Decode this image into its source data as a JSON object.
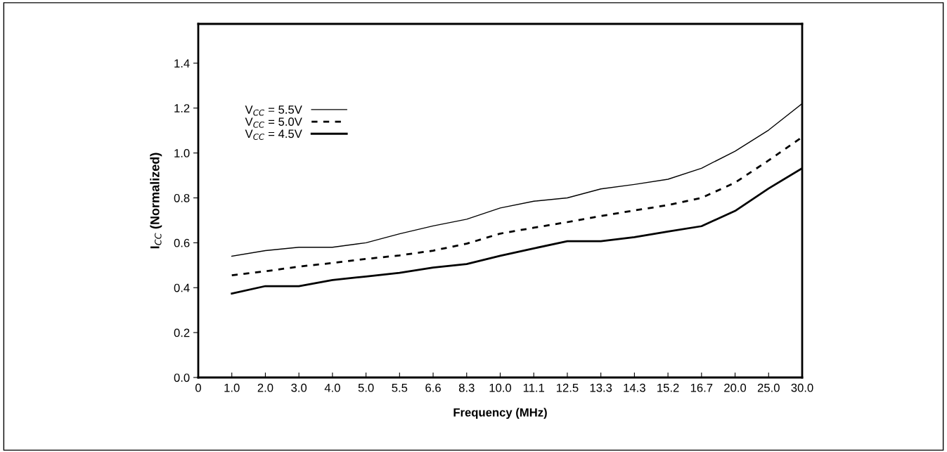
{
  "chart_data": {
    "type": "line",
    "xlabel": "Frequency (MHz)",
    "ylabel": "I$_{CC}$ (Normalized)",
    "categories": [
      "0",
      "1.0",
      "2.0",
      "3.0",
      "4.0",
      "5.0",
      "5.5",
      "6.6",
      "8.3",
      "10.0",
      "11.1",
      "12.5",
      "13.3",
      "14.3",
      "15.2",
      "16.7",
      "20.0",
      "25.0",
      "30.0"
    ],
    "series": [
      {
        "name": "V$_{CC}$ = 5.5V",
        "color": "#000000",
        "line_style": "solid",
        "values": [
          null,
          0.54,
          0.565,
          0.58,
          0.58,
          0.6,
          0.64,
          0.675,
          0.705,
          0.755,
          0.785,
          0.8,
          0.84,
          0.86,
          0.883,
          0.932,
          1.008,
          1.102,
          1.22
        ]
      },
      {
        "name": "V$_{CC}$ = 5.0V",
        "color": "#000000",
        "line_style": "dashed",
        "values": [
          null,
          0.455,
          0.473,
          0.494,
          0.51,
          0.528,
          0.544,
          0.565,
          0.596,
          0.641,
          0.667,
          0.692,
          0.719,
          0.744,
          0.768,
          0.8,
          0.868,
          0.967,
          1.071
        ]
      },
      {
        "name": "V$_{CC}$ = 4.5V",
        "color": "#000000",
        "line_style": "solid",
        "values": [
          null,
          0.374,
          0.407,
          0.407,
          0.434,
          0.45,
          0.466,
          0.49,
          0.505,
          0.542,
          0.575,
          0.607,
          0.607,
          0.625,
          0.65,
          0.674,
          0.742,
          0.842,
          0.932
        ]
      }
    ],
    "ylim": [
      0,
      1.575
    ],
    "yticks": [
      {
        "value": 0,
        "label": "0.0"
      },
      {
        "value": 0.2,
        "label": "0.2"
      },
      {
        "value": 0.4,
        "label": "0.4"
      },
      {
        "value": 0.6,
        "label": "0.6"
      },
      {
        "value": 0.8,
        "label": "0.8"
      },
      {
        "value": 1.0,
        "label": "1.0"
      },
      {
        "value": 1.2,
        "label": "1.2"
      },
      {
        "value": 1.4,
        "label": "1.4"
      }
    ],
    "grid": false,
    "legend": "top left",
    "marker": "none"
  }
}
